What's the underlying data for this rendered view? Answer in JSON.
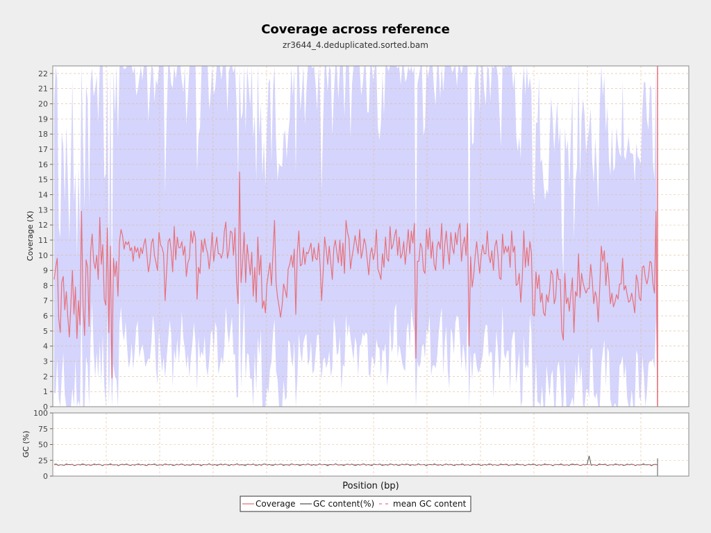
{
  "chart_data": {
    "title": "Coverage across reference",
    "subtitle": "zr3644_4.deduplicated.sorted.bam",
    "xlabel": "Position (bp)",
    "coverage_panel": {
      "type": "line",
      "ylabel": "Coverage (X)",
      "ylim": [
        0,
        22.5
      ],
      "yticks": [
        0,
        1,
        2,
        3,
        4,
        5,
        6,
        7,
        8,
        9,
        10,
        11,
        12,
        13,
        14,
        15,
        16,
        17,
        18,
        19,
        20,
        21,
        22
      ],
      "grid": true,
      "series": [
        {
          "name": "Coverage",
          "color": "#e8707a",
          "values": [
            8.4,
            9.2,
            9.8,
            5.8,
            4.9,
            8.2,
            8.6,
            6.4,
            7.6,
            5.9,
            4.6,
            6.8,
            9.0,
            6.1,
            7.9,
            4.5,
            7.0,
            5.4,
            12.9,
            6.8,
            4.7,
            9.7,
            9.2,
            5.3,
            10.2,
            11.4,
            9.6,
            9.1,
            10.0,
            8.4,
            12.5,
            9.4,
            10.7,
            7.1,
            6.7,
            11.8,
            4.9,
            10.6,
            1.9,
            9.8,
            8.6,
            9.6,
            7.3,
            10.9,
            11.7,
            11.3,
            10.4,
            10.9,
            10.7,
            10.9,
            10.3,
            10.5,
            9.6,
            10.6,
            10.2,
            10.5,
            9.8,
            10.5,
            10.1,
            10.7,
            11.1,
            10.1,
            8.9,
            9.5,
            10.8,
            11.1,
            10.0,
            9.5,
            9.0,
            11.5,
            10.7,
            10.5,
            10.1,
            7.0,
            9.0,
            10.9,
            11.1,
            10.3,
            8.9,
            11.9,
            9.7,
            11.2,
            10.5,
            10.5,
            10.9,
            10.0,
            10.6,
            8.6,
            9.5,
            9.8,
            11.6,
            10.8,
            11.6,
            11.1,
            7.1,
            9.2,
            8.8,
            11.0,
            10.2,
            11.1,
            10.5,
            10.1,
            9.1,
            10.1,
            11.5,
            9.6,
            10.5,
            11.2,
            10.1,
            10.1,
            9.8,
            10.2,
            11.6,
            12.2,
            9.8,
            10.3,
            11.6,
            11.5,
            10.0,
            11.8,
            8.3,
            6.8,
            15.5,
            8.2,
            9.5,
            11.5,
            8.2,
            10.7,
            9.7,
            8.7,
            10.2,
            7.3,
            9.2,
            6.9,
            11.2,
            8.7,
            10.0,
            6.5,
            7.0,
            6.2,
            8.1,
            8.8,
            9.5,
            8.0,
            10.2,
            12.3,
            8.2,
            7.2,
            6.6,
            5.9,
            6.7,
            8.1,
            7.7,
            7.2,
            9.1,
            9.4,
            10.0,
            9.2,
            10.4,
            6.1,
            10.2,
            11.6,
            9.3,
            9.4,
            10.5,
            9.4,
            10.2,
            10.1,
            10.4,
            10.8,
            9.6,
            10.5,
            9.8,
            9.7,
            10.8,
            9.3,
            7.0,
            8.9,
            11.2,
            10.4,
            9.4,
            10.6,
            9.5,
            8.4,
            10.5,
            11.0,
            10.2,
            9.5,
            11.0,
            9.3,
            10.8,
            8.8,
            12.3,
            11.5,
            11.1,
            9.1,
            9.9,
            10.5,
            11.3,
            10.7,
            10.1,
            11.7,
            9.8,
            10.3,
            11.1,
            10.7,
            9.7,
            8.7,
            10.1,
            10.5,
            9.7,
            10.2,
            11.7,
            9.1,
            8.8,
            8.4,
            10.1,
            9.2,
            11.2,
            9.8,
            9.6,
            11.9,
            10.4,
            10.7,
            11.3,
            11.7,
            10.0,
            11.2,
            9.8,
            10.1,
            10.9,
            9.4,
            10.5,
            11.7,
            10.1,
            11.6,
            10.8,
            12.1,
            3.2,
            9.6,
            9.6,
            10.8,
            10.5,
            9.0,
            8.8,
            11.7,
            10.4,
            11.8,
            9.8,
            10.9,
            9.4,
            9.0,
            10.6,
            10.9,
            10.4,
            12.1,
            9.1,
            10.7,
            11.6,
            10.3,
            9.4,
            11.5,
            10.5,
            10.1,
            11.5,
            10.7,
            11.7,
            12.1,
            9.6,
            10.7,
            11.2,
            10.0,
            12.1,
            4.0,
            9.9,
            7.9,
            8.6,
            9.9,
            10.9,
            9.8,
            8.8,
            10.0,
            10.7,
            10.1,
            10.1,
            11.6,
            10.0,
            9.5,
            10.3,
            9.0,
            10.6,
            11.0,
            10.0,
            8.5,
            8.4,
            11.4,
            10.1,
            10.6,
            10.2,
            10.6,
            9.2,
            11.6,
            10.2,
            10.6,
            8.0,
            8.1,
            8.8,
            6.9,
            8.5,
            11.6,
            9.2,
            10.5,
            9.3,
            10.9,
            10.2,
            6.1,
            6.0,
            8.9,
            7.8,
            8.7,
            6.9,
            7.5,
            6.2,
            6.0,
            7.4,
            6.9,
            7.7,
            9.0,
            8.7,
            6.8,
            7.2,
            9.1,
            8.4,
            8.4,
            5.0,
            4.4,
            8.8,
            6.8,
            7.2,
            6.3,
            7.5,
            8.5,
            4.9,
            7.6,
            7.3,
            10.1,
            7.2,
            8.8,
            8.2,
            7.8,
            7.5,
            7.8,
            7.8,
            9.4,
            8.4,
            6.8,
            7.6,
            7.2,
            5.6,
            7.9,
            10.6,
            9.6,
            10.3,
            8.0,
            9.5,
            8.3,
            6.8,
            7.5,
            6.6,
            6.9,
            7.4,
            7.1,
            8.1,
            8.1,
            9.8,
            7.7,
            8.0,
            7.4,
            6.9,
            7.0,
            7.5,
            6.9,
            6.2,
            8.7,
            8.3,
            7.2,
            7.0,
            9.2,
            9.3,
            8.5,
            8.1,
            8.6,
            9.6,
            9.5,
            8.1,
            7.5,
            12.9,
            0.1
          ]
        }
      ]
    },
    "gc_panel": {
      "type": "line",
      "ylabel": "GC (%)",
      "ylim": [
        0,
        100
      ],
      "yticks": [
        0,
        25,
        50,
        75,
        100
      ],
      "grid": true,
      "series": [
        {
          "name": "GC content(%)",
          "color": "#555555",
          "level": 18,
          "spikes": [
            {
              "frac": 0.886,
              "value": 32
            }
          ]
        },
        {
          "name": "mean GC content",
          "color": "#e8707a",
          "dashed": true,
          "value": 18
        }
      ]
    },
    "legend": {
      "placement": "bottom",
      "entries": [
        {
          "label": "Coverage",
          "color": "#e8707a",
          "style": "solid"
        },
        {
          "label": "GC content(%)",
          "color": "#555555",
          "style": "solid"
        },
        {
          "label": "mean GC content",
          "color": "#e8707a",
          "style": "dashed"
        }
      ]
    },
    "colors": {
      "coverage_band": "#d4d4fc",
      "grid": "#e0b890"
    }
  }
}
